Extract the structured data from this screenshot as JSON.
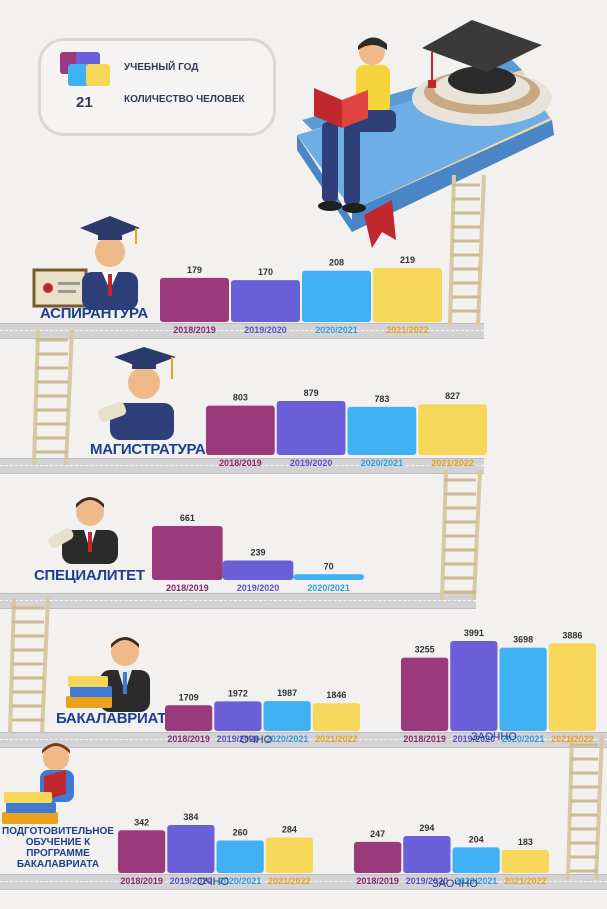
{
  "legend": {
    "year_label": "УЧЕБНЫЙ ГОД",
    "count_label": "КОЛИЧЕСТВО ЧЕЛОВЕК",
    "count_example": "21"
  },
  "colors": {
    "y2018": "#9b3a7b",
    "y2019": "#6a5fd8",
    "y2020": "#3fb1f2",
    "y2021": "#f7d75a",
    "title": "#1e3f8c"
  },
  "sections": {
    "aspirantura": "АСПИРАНТУРА",
    "magistratura": "МАГИСТРАТУРА",
    "specialitet": "СПЕЦИАЛИТЕТ",
    "bakalavriat": "БАКАЛАВРИАТ",
    "podgotovka": "ПОДГОТОВИТЕЛЬНОЕ ОБУЧЕНИЕ К ПРОГРАММЕ БАКАЛАВРИАТА"
  },
  "forms": {
    "ochno_bak": "ОЧНО",
    "zaochno_bak": "ЗАОЧНО",
    "ochno_prep": "ОЧНО",
    "zaochno_prep": "ЗАОЧНО"
  },
  "chart_data": [
    {
      "id": "aspirantura",
      "type": "bar",
      "categories": [
        "2018/2019",
        "2019/2020",
        "2020/2021",
        "2021/2022"
      ],
      "values": [
        179,
        170,
        208,
        219
      ]
    },
    {
      "id": "magistratura",
      "type": "bar",
      "categories": [
        "2018/2019",
        "2019/2020",
        "2020/2021",
        "2021/2022"
      ],
      "values": [
        803,
        879,
        783,
        827
      ]
    },
    {
      "id": "specialitet",
      "type": "bar",
      "categories": [
        "2018/2019",
        "2019/2020",
        "2020/2021"
      ],
      "values": [
        661,
        239,
        70
      ]
    },
    {
      "id": "bak-ochno",
      "type": "bar",
      "categories": [
        "2018/2019",
        "2019/2020",
        "2020/2021",
        "2021/2022"
      ],
      "values": [
        1709,
        1972,
        1987,
        1846
      ]
    },
    {
      "id": "bak-zaochno",
      "type": "bar",
      "categories": [
        "2018/2019",
        "2019/2020",
        "2020/2021",
        "2021/2022"
      ],
      "values": [
        3255,
        3991,
        3698,
        3886
      ]
    },
    {
      "id": "prep-ochno",
      "type": "bar",
      "categories": [
        "2018/2019",
        "2019/2020",
        "2020/2021",
        "2021/2022"
      ],
      "values": [
        342,
        384,
        260,
        284
      ]
    },
    {
      "id": "prep-zaochno",
      "type": "bar",
      "categories": [
        "2018/2019",
        "2019/2020",
        "2020/2021",
        "2021/2022"
      ],
      "values": [
        247,
        294,
        204,
        183
      ]
    }
  ]
}
